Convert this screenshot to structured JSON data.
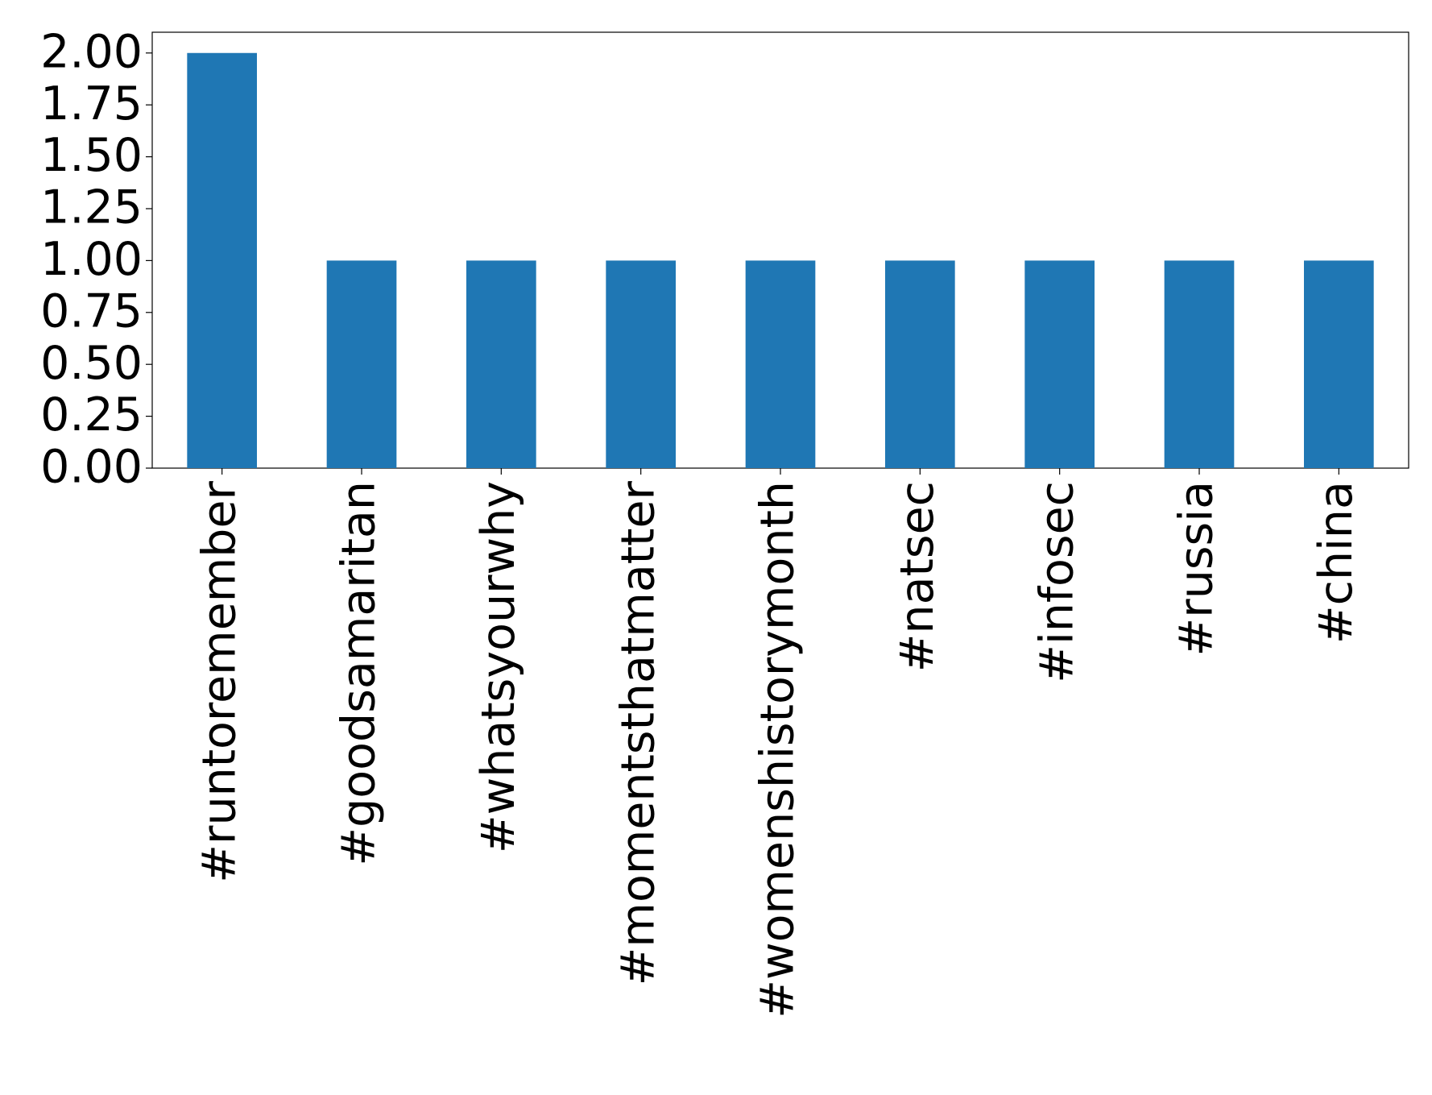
{
  "chart_data": {
    "type": "bar",
    "categories": [
      "#runtoremember",
      "#goodsamaritan",
      "#whatsyourwhy",
      "#momentsthatmatter",
      "#womenshistorymonth",
      "#natsec",
      "#infosec",
      "#russia",
      "#china"
    ],
    "values": [
      2,
      1,
      1,
      1,
      1,
      1,
      1,
      1,
      1
    ],
    "color": "#1f77b4",
    "ylim": [
      0,
      2.1
    ],
    "yticks": [
      {
        "value": 0,
        "label": "0.00"
      },
      {
        "value": 0.25,
        "label": "0.25"
      },
      {
        "value": 0.5,
        "label": "0.50"
      },
      {
        "value": 0.75,
        "label": "0.75"
      },
      {
        "value": 1,
        "label": "1.00"
      },
      {
        "value": 1.25,
        "label": "1.25"
      },
      {
        "value": 1.5,
        "label": "1.50"
      },
      {
        "value": 1.75,
        "label": "1.75"
      },
      {
        "value": 2,
        "label": "2.00"
      }
    ],
    "grid": false
  }
}
